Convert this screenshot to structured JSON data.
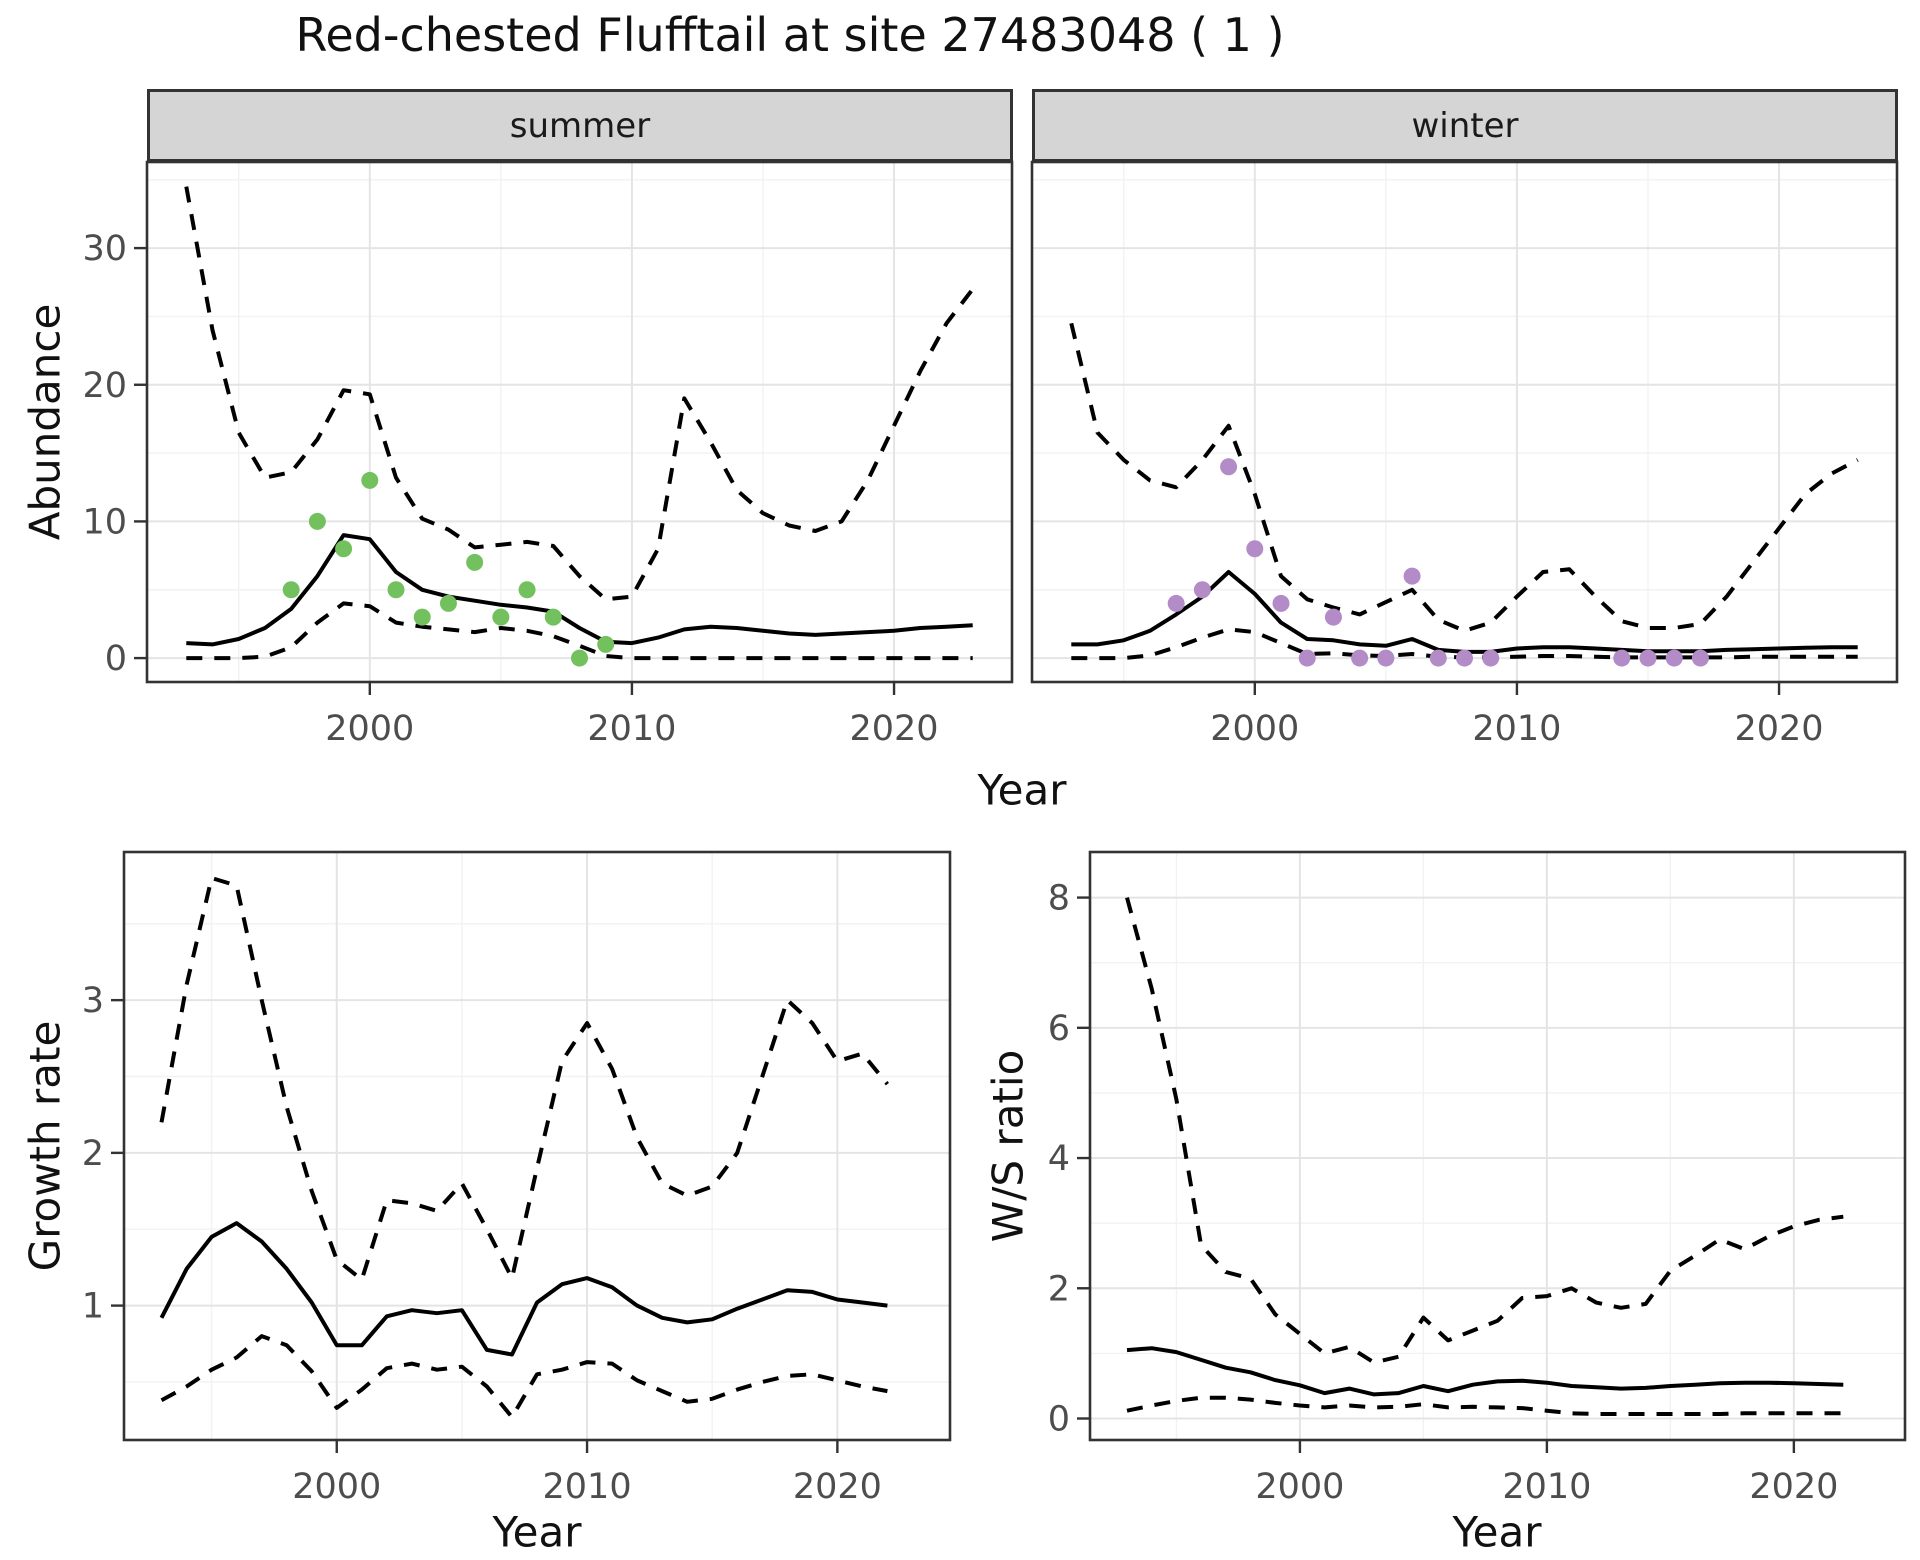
{
  "title": "Red-chested Flufftail at site 27483048 ( 1 )",
  "facets": [
    {
      "label": "summer"
    },
    {
      "label": "winter"
    }
  ],
  "axes": {
    "x_label": "Year",
    "abundance_label": "Abundance",
    "growth_label": "Growth rate",
    "ws_label": "W/S ratio"
  },
  "colors": {
    "summer_points": "#73C05F",
    "winter_points": "#B28BC7",
    "line": "#000000",
    "panel_border": "#333333",
    "grid_major": "#E4E4E4",
    "grid_minor": "#F2F2F2",
    "strip_bg": "#D5D5D5",
    "tick_text": "#4D4D4D"
  },
  "chart_data": [
    {
      "id": "abundance-summer",
      "type": "line",
      "facet": "summer",
      "title": "",
      "xlabel": "Year",
      "ylabel": "Abundance",
      "xlim": [
        1991.5,
        2024.5
      ],
      "ylim": [
        -1.75,
        36.3
      ],
      "xticks": [
        2000,
        2010,
        2020
      ],
      "xticks_minor": [
        1995,
        2005,
        2015
      ],
      "yticks": [
        0,
        10,
        20,
        30
      ],
      "yticks_minor": [
        5,
        15,
        25,
        35
      ],
      "show_y_labels": true,
      "x": [
        1993,
        1994,
        1995,
        1996,
        1997,
        1998,
        1999,
        2000,
        2001,
        2002,
        2003,
        2004,
        2005,
        2006,
        2007,
        2008,
        2009,
        2010,
        2011,
        2012,
        2013,
        2014,
        2015,
        2016,
        2017,
        2018,
        2019,
        2020,
        2021,
        2022,
        2023
      ],
      "series": [
        {
          "name": "median",
          "style": "solid",
          "values": [
            1.1,
            1.0,
            1.4,
            2.2,
            3.6,
            6.0,
            9.0,
            8.7,
            6.3,
            5.0,
            4.5,
            4.2,
            3.9,
            3.7,
            3.4,
            2.2,
            1.2,
            1.1,
            1.5,
            2.1,
            2.3,
            2.2,
            2.0,
            1.8,
            1.7,
            1.8,
            1.9,
            2.0,
            2.2,
            2.3,
            2.4
          ]
        },
        {
          "name": "upper_ci",
          "style": "dashed",
          "values": [
            34.5,
            24.0,
            16.5,
            13.2,
            13.6,
            16.0,
            19.6,
            19.3,
            13.2,
            10.2,
            9.4,
            8.1,
            8.3,
            8.5,
            8.2,
            6.0,
            4.3,
            4.5,
            8.0,
            19.0,
            15.8,
            12.3,
            10.6,
            9.7,
            9.3,
            10.0,
            13.0,
            17.0,
            21.0,
            24.5,
            27.0
          ]
        },
        {
          "name": "lower_ci",
          "style": "dashed",
          "values": [
            0,
            0,
            0,
            0.1,
            0.8,
            2.6,
            4.0,
            3.8,
            2.6,
            2.3,
            2.1,
            1.9,
            2.2,
            2.0,
            1.6,
            0.9,
            0.15,
            0,
            0,
            0,
            0,
            0,
            0,
            0,
            0,
            0,
            0,
            0,
            0,
            0,
            0
          ]
        }
      ],
      "points": {
        "name": "observed-summer",
        "color": "#73C05F",
        "x": [
          1997,
          1998,
          1999,
          2000,
          2001,
          2002,
          2003,
          2004,
          2005,
          2006,
          2007,
          2008,
          2009
        ],
        "y": [
          5,
          10,
          8,
          13,
          5,
          3,
          4,
          7,
          3,
          5,
          3,
          0,
          1
        ]
      }
    },
    {
      "id": "abundance-winter",
      "type": "line",
      "facet": "winter",
      "title": "",
      "xlabel": "Year",
      "ylabel": "Abundance",
      "xlim": [
        1991.5,
        2024.5
      ],
      "ylim": [
        -1.75,
        36.3
      ],
      "xticks": [
        2000,
        2010,
        2020
      ],
      "xticks_minor": [
        1995,
        2005,
        2015
      ],
      "yticks": [
        0,
        10,
        20,
        30
      ],
      "yticks_minor": [
        5,
        15,
        25,
        35
      ],
      "show_y_labels": false,
      "x": [
        1993,
        1994,
        1995,
        1996,
        1997,
        1998,
        1999,
        2000,
        2001,
        2002,
        2003,
        2004,
        2005,
        2006,
        2007,
        2008,
        2009,
        2010,
        2011,
        2012,
        2013,
        2014,
        2015,
        2016,
        2017,
        2018,
        2019,
        2020,
        2021,
        2022,
        2023
      ],
      "series": [
        {
          "name": "median",
          "style": "solid",
          "values": [
            1.0,
            1.0,
            1.3,
            2.0,
            3.2,
            4.5,
            6.3,
            4.7,
            2.6,
            1.4,
            1.3,
            1.0,
            0.9,
            1.4,
            0.6,
            0.45,
            0.45,
            0.7,
            0.8,
            0.8,
            0.7,
            0.6,
            0.5,
            0.5,
            0.5,
            0.6,
            0.65,
            0.7,
            0.75,
            0.8,
            0.8
          ]
        },
        {
          "name": "upper_ci",
          "style": "dashed",
          "values": [
            24.5,
            16.5,
            14.5,
            13.0,
            12.5,
            14.5,
            17.0,
            12.0,
            6.0,
            4.3,
            3.7,
            3.2,
            4.1,
            5.0,
            2.8,
            2.0,
            2.6,
            4.5,
            6.3,
            6.5,
            4.5,
            2.7,
            2.2,
            2.2,
            2.5,
            4.5,
            7.0,
            9.5,
            12.0,
            13.5,
            14.5
          ]
        },
        {
          "name": "lower_ci",
          "style": "dashed",
          "values": [
            0,
            0,
            0,
            0.2,
            0.8,
            1.5,
            2.1,
            1.9,
            1.1,
            0.3,
            0.35,
            0.2,
            0.15,
            0.3,
            0.1,
            0.05,
            0.05,
            0.1,
            0.15,
            0.15,
            0.1,
            0.05,
            0.05,
            0.05,
            0.05,
            0.05,
            0.1,
            0.1,
            0.1,
            0.1,
            0.1
          ]
        }
      ],
      "points": {
        "name": "observed-winter",
        "color": "#B28BC7",
        "x": [
          1997,
          1998,
          1999,
          2000,
          2001,
          2002,
          2003,
          2004,
          2005,
          2006,
          2007,
          2008,
          2009,
          2014,
          2015,
          2016,
          2017
        ],
        "y": [
          4,
          5,
          14,
          8,
          4,
          0,
          3,
          0,
          0,
          6,
          0,
          0,
          0,
          0,
          0,
          0,
          0
        ]
      }
    },
    {
      "id": "growth-rate",
      "type": "line",
      "facet": "",
      "title": "",
      "xlabel": "Year",
      "ylabel": "Growth rate",
      "xlim": [
        1991.5,
        2024.5
      ],
      "ylim": [
        0.12,
        3.97
      ],
      "xticks": [
        2000,
        2010,
        2020
      ],
      "xticks_minor": [
        1995,
        2005,
        2015
      ],
      "yticks": [
        1,
        2,
        3
      ],
      "yticks_minor": [
        0.5,
        1.5,
        2.5,
        3.5
      ],
      "show_y_labels": true,
      "x": [
        1993,
        1994,
        1995,
        1996,
        1997,
        1998,
        1999,
        2000,
        2001,
        2002,
        2003,
        2004,
        2005,
        2006,
        2007,
        2008,
        2009,
        2010,
        2011,
        2012,
        2013,
        2014,
        2015,
        2016,
        2017,
        2018,
        2019,
        2020,
        2021,
        2022
      ],
      "series": [
        {
          "name": "median",
          "style": "solid",
          "values": [
            0.92,
            1.24,
            1.45,
            1.54,
            1.42,
            1.24,
            1.02,
            0.74,
            0.74,
            0.93,
            0.97,
            0.95,
            0.97,
            0.71,
            0.68,
            1.02,
            1.14,
            1.18,
            1.12,
            1.0,
            0.92,
            0.89,
            0.91,
            0.98,
            1.04,
            1.1,
            1.09,
            1.04,
            1.02,
            1.0
          ]
        },
        {
          "name": "upper_ci",
          "style": "dashed",
          "values": [
            2.2,
            3.1,
            3.8,
            3.75,
            3.0,
            2.3,
            1.75,
            1.3,
            1.17,
            1.69,
            1.67,
            1.62,
            1.8,
            1.5,
            1.18,
            1.9,
            2.6,
            2.85,
            2.55,
            2.1,
            1.8,
            1.72,
            1.78,
            2.0,
            2.5,
            3.0,
            2.85,
            2.6,
            2.65,
            2.45
          ]
        },
        {
          "name": "lower_ci",
          "style": "dashed",
          "values": [
            0.38,
            0.47,
            0.58,
            0.66,
            0.8,
            0.74,
            0.57,
            0.33,
            0.45,
            0.59,
            0.62,
            0.58,
            0.6,
            0.47,
            0.27,
            0.55,
            0.58,
            0.63,
            0.62,
            0.51,
            0.44,
            0.37,
            0.39,
            0.45,
            0.5,
            0.54,
            0.55,
            0.51,
            0.47,
            0.44
          ]
        }
      ],
      "points": null
    },
    {
      "id": "ws-ratio",
      "type": "line",
      "facet": "",
      "title": "",
      "xlabel": "Year",
      "ylabel": "W/S ratio",
      "xlim": [
        1991.5,
        2024.5
      ],
      "ylim": [
        -0.33,
        8.7
      ],
      "xticks": [
        2000,
        2010,
        2020
      ],
      "xticks_minor": [
        1995,
        2005,
        2015
      ],
      "yticks": [
        0,
        2,
        4,
        6,
        8
      ],
      "yticks_minor": [
        1,
        3,
        5,
        7
      ],
      "show_y_labels": true,
      "x": [
        1993,
        1994,
        1995,
        1996,
        1997,
        1998,
        1999,
        2000,
        2001,
        2002,
        2003,
        2004,
        2005,
        2006,
        2007,
        2008,
        2009,
        2010,
        2011,
        2012,
        2013,
        2014,
        2015,
        2016,
        2017,
        2018,
        2019,
        2020,
        2021,
        2022
      ],
      "series": [
        {
          "name": "median",
          "style": "solid",
          "values": [
            1.05,
            1.08,
            1.02,
            0.9,
            0.78,
            0.71,
            0.59,
            0.51,
            0.39,
            0.46,
            0.37,
            0.39,
            0.5,
            0.42,
            0.52,
            0.57,
            0.58,
            0.55,
            0.5,
            0.48,
            0.46,
            0.47,
            0.5,
            0.52,
            0.54,
            0.55,
            0.55,
            0.54,
            0.53,
            0.52
          ]
        },
        {
          "name": "upper_ci",
          "style": "dashed",
          "values": [
            8.0,
            6.6,
            4.9,
            2.66,
            2.25,
            2.15,
            1.6,
            1.3,
            1.0,
            1.1,
            0.86,
            0.95,
            1.55,
            1.2,
            1.35,
            1.5,
            1.85,
            1.88,
            2.0,
            1.78,
            1.7,
            1.76,
            2.27,
            2.5,
            2.75,
            2.6,
            2.8,
            2.95,
            3.05,
            3.1
          ]
        },
        {
          "name": "lower_ci",
          "style": "dashed",
          "values": [
            0.12,
            0.2,
            0.27,
            0.32,
            0.32,
            0.29,
            0.24,
            0.2,
            0.17,
            0.2,
            0.17,
            0.18,
            0.22,
            0.17,
            0.18,
            0.17,
            0.16,
            0.12,
            0.08,
            0.07,
            0.07,
            0.07,
            0.07,
            0.07,
            0.07,
            0.08,
            0.08,
            0.08,
            0.08,
            0.08
          ]
        }
      ],
      "points": null
    }
  ]
}
